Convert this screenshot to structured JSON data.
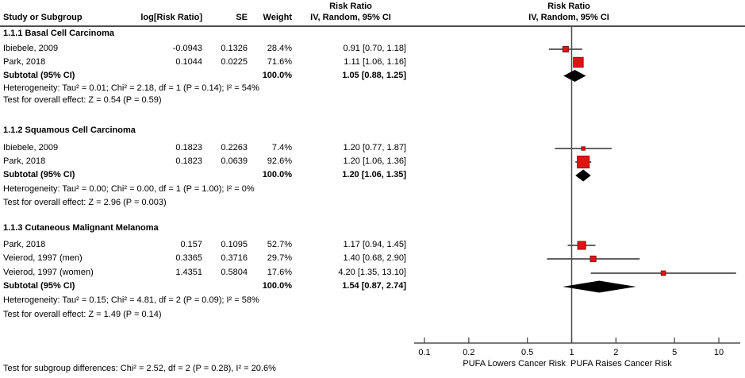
{
  "table_headers": {
    "col1": "Study or Subgroup",
    "col2": "log[Risk Ratio]",
    "col3": "SE",
    "col4": "Weight",
    "col5_line1": "Risk Ratio",
    "col5_line2": "IV, Random, 95% CI",
    "plot_line1": "Risk Ratio",
    "plot_line2": "IV, Random, 95% CI"
  },
  "colors": {
    "marker_red": "#e11414",
    "marker_red_border": "#8b1212",
    "diamond_black": "#000000",
    "line_gray": "#4d4d4d"
  },
  "chart_data": {
    "type": "forest",
    "x_scale": "log10",
    "x_range": [
      0.1,
      10
    ],
    "null_line": 1,
    "axis_ticks": [
      "0.1",
      "0.2",
      "0.5",
      "1",
      "2",
      "5",
      "10"
    ],
    "axis_label_left": "PUFA Lowers Cancer Risk",
    "axis_label_right": "PUFA Raises Cancer Risk",
    "groups": [
      {
        "label": "1.1.1 Basal Cell Carcinoma",
        "studies": [
          {
            "name": "Ibiebele, 2009",
            "log_rr": "-0.0943",
            "se": "0.1326",
            "weight": "28.4%",
            "weight_pct": 28.4,
            "ci_text": "0.91 [0.70, 1.18]",
            "rr": 0.91,
            "lo": 0.7,
            "hi": 1.18
          },
          {
            "name": "Park, 2018",
            "log_rr": "0.1044",
            "se": "0.0225",
            "weight": "71.6%",
            "weight_pct": 71.6,
            "ci_text": "1.11 [1.06, 1.16]",
            "rr": 1.11,
            "lo": 1.06,
            "hi": 1.16
          }
        ],
        "subtotal": {
          "name": "Subtotal (95% CI)",
          "weight": "100.0%",
          "ci_text": "1.05 [0.88, 1.25]",
          "rr": 1.05,
          "lo": 0.88,
          "hi": 1.25
        },
        "heterogeneity": "Heterogeneity: Tau² = 0.01; Chi² = 2.18, df = 1 (P = 0.14); I² = 54%",
        "overall_effect": "Test for overall effect: Z = 0.54 (P = 0.59)"
      },
      {
        "label": "1.1.2 Squamous Cell Carcinoma",
        "studies": [
          {
            "name": "Ibiebele, 2009",
            "log_rr": "0.1823",
            "se": "0.2263",
            "weight": "7.4%",
            "weight_pct": 7.4,
            "ci_text": "1.20 [0.77, 1.87]",
            "rr": 1.2,
            "lo": 0.77,
            "hi": 1.87
          },
          {
            "name": "Park, 2018",
            "log_rr": "0.1823",
            "se": "0.0639",
            "weight": "92.6%",
            "weight_pct": 92.6,
            "ci_text": "1.20 [1.06, 1.36]",
            "rr": 1.2,
            "lo": 1.06,
            "hi": 1.36
          }
        ],
        "subtotal": {
          "name": "Subtotal (95% CI)",
          "weight": "100.0%",
          "ci_text": "1.20 [1.06, 1.35]",
          "rr": 1.2,
          "lo": 1.06,
          "hi": 1.35
        },
        "heterogeneity": "Heterogeneity: Tau² = 0.00; Chi² = 0.00, df = 1 (P = 1.00); I² = 0%",
        "overall_effect": "Test for overall effect: Z = 2.96 (P = 0.003)"
      },
      {
        "label": "1.1.3 Cutaneous Malignant Melanoma",
        "studies": [
          {
            "name": "Park, 2018",
            "log_rr": "0.157",
            "se": "0.1095",
            "weight": "52.7%",
            "weight_pct": 52.7,
            "ci_text": "1.17 [0.94, 1.45]",
            "rr": 1.17,
            "lo": 0.94,
            "hi": 1.45
          },
          {
            "name": "Veierod, 1997 (men)",
            "log_rr": "0.3365",
            "se": "0.3716",
            "weight": "29.7%",
            "weight_pct": 29.7,
            "ci_text": "1.40 [0.68, 2.90]",
            "rr": 1.4,
            "lo": 0.68,
            "hi": 2.9
          },
          {
            "name": "Veierod, 1997 (women)",
            "log_rr": "1.4351",
            "se": "0.5804",
            "weight": "17.6%",
            "weight_pct": 17.6,
            "ci_text": "4.20 [1.35, 13.10]",
            "rr": 4.2,
            "lo": 1.35,
            "hi": 13.1
          }
        ],
        "subtotal": {
          "name": "Subtotal (95% CI)",
          "weight": "100.0%",
          "ci_text": "1.54 [0.87, 2.74]",
          "rr": 1.54,
          "lo": 0.87,
          "hi": 2.74
        },
        "heterogeneity": "Heterogeneity: Tau² = 0.15; Chi² = 4.81, df = 2 (P = 0.09); I² = 58%",
        "overall_effect": "Test for overall effect: Z = 1.49 (P = 0.14)"
      }
    ],
    "footer": "Test for subgroup differences: Chi² = 2.52, df = 2 (P = 0.28), I² = 20.6%"
  }
}
